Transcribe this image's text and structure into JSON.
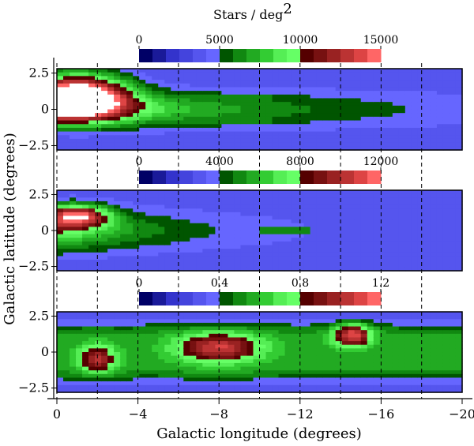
{
  "chart_data": {
    "type": "heatmap",
    "colorbar_title_main": "Stars / deg",
    "colorbar_title_sup": "2",
    "xlabel": "Galactic longitude (degrees)",
    "ylabel": "Galactic latitude (degrees)",
    "xlim": [
      0,
      -20
    ],
    "x_ticks": [
      "0",
      "−4",
      "−8",
      "−12",
      "−16",
      "−20"
    ],
    "y_ticks": [
      "2.5",
      "0",
      "−2.5"
    ],
    "dashed_grid_longitudes": [
      0,
      -2,
      -4,
      -6,
      -8,
      -10,
      -12,
      -14,
      -16,
      -18
    ],
    "colormap": [
      "#000066",
      "#1a1a99",
      "#3333cc",
      "#4444dd",
      "#5555ee",
      "#6666ff",
      "#005500",
      "#118811",
      "#22aa22",
      "#33cc33",
      "#55ee55",
      "#66ff66",
      "#550000",
      "#771111",
      "#992222",
      "#bb3333",
      "#dd4444",
      "#ff6666",
      "#ffffff"
    ],
    "panels": [
      {
        "colorbar_ticks": [
          "0",
          "5000",
          "10000",
          "15000"
        ],
        "vmax": 15000
      },
      {
        "colorbar_ticks": [
          "0",
          "4000",
          "8000",
          "12000"
        ],
        "vmax": 12000
      },
      {
        "colorbar_ticks": [
          "0",
          "0.4",
          "0.8",
          "1.2"
        ],
        "vmax": 1.2
      }
    ]
  }
}
